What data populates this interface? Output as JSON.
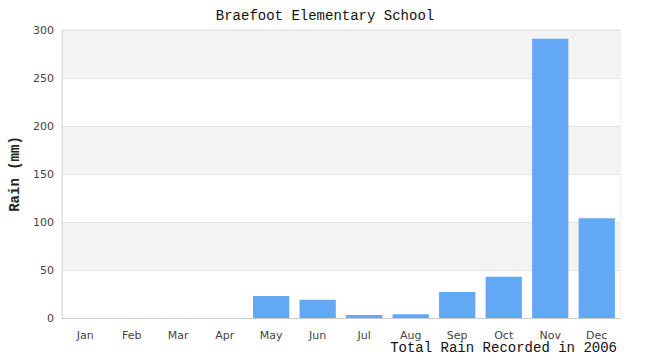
{
  "chart_data": {
    "type": "bar",
    "title": "Braefoot Elementary School",
    "x_label": "Total Rain Recorded in 2006",
    "y_label": "Rain (mm)",
    "categories": [
      "Jan",
      "Feb",
      "Mar",
      "Apr",
      "May",
      "Jun",
      "Jul",
      "Aug",
      "Sep",
      "Oct",
      "Nov",
      "Dec"
    ],
    "values": [
      0,
      0,
      0,
      0,
      23,
      19,
      3,
      4,
      27,
      43,
      291,
      104
    ],
    "color": "#63a8f5",
    "ylim": [
      0,
      300
    ],
    "yticks": [
      0,
      50,
      100,
      150,
      200,
      250,
      300
    ],
    "grid": true
  }
}
